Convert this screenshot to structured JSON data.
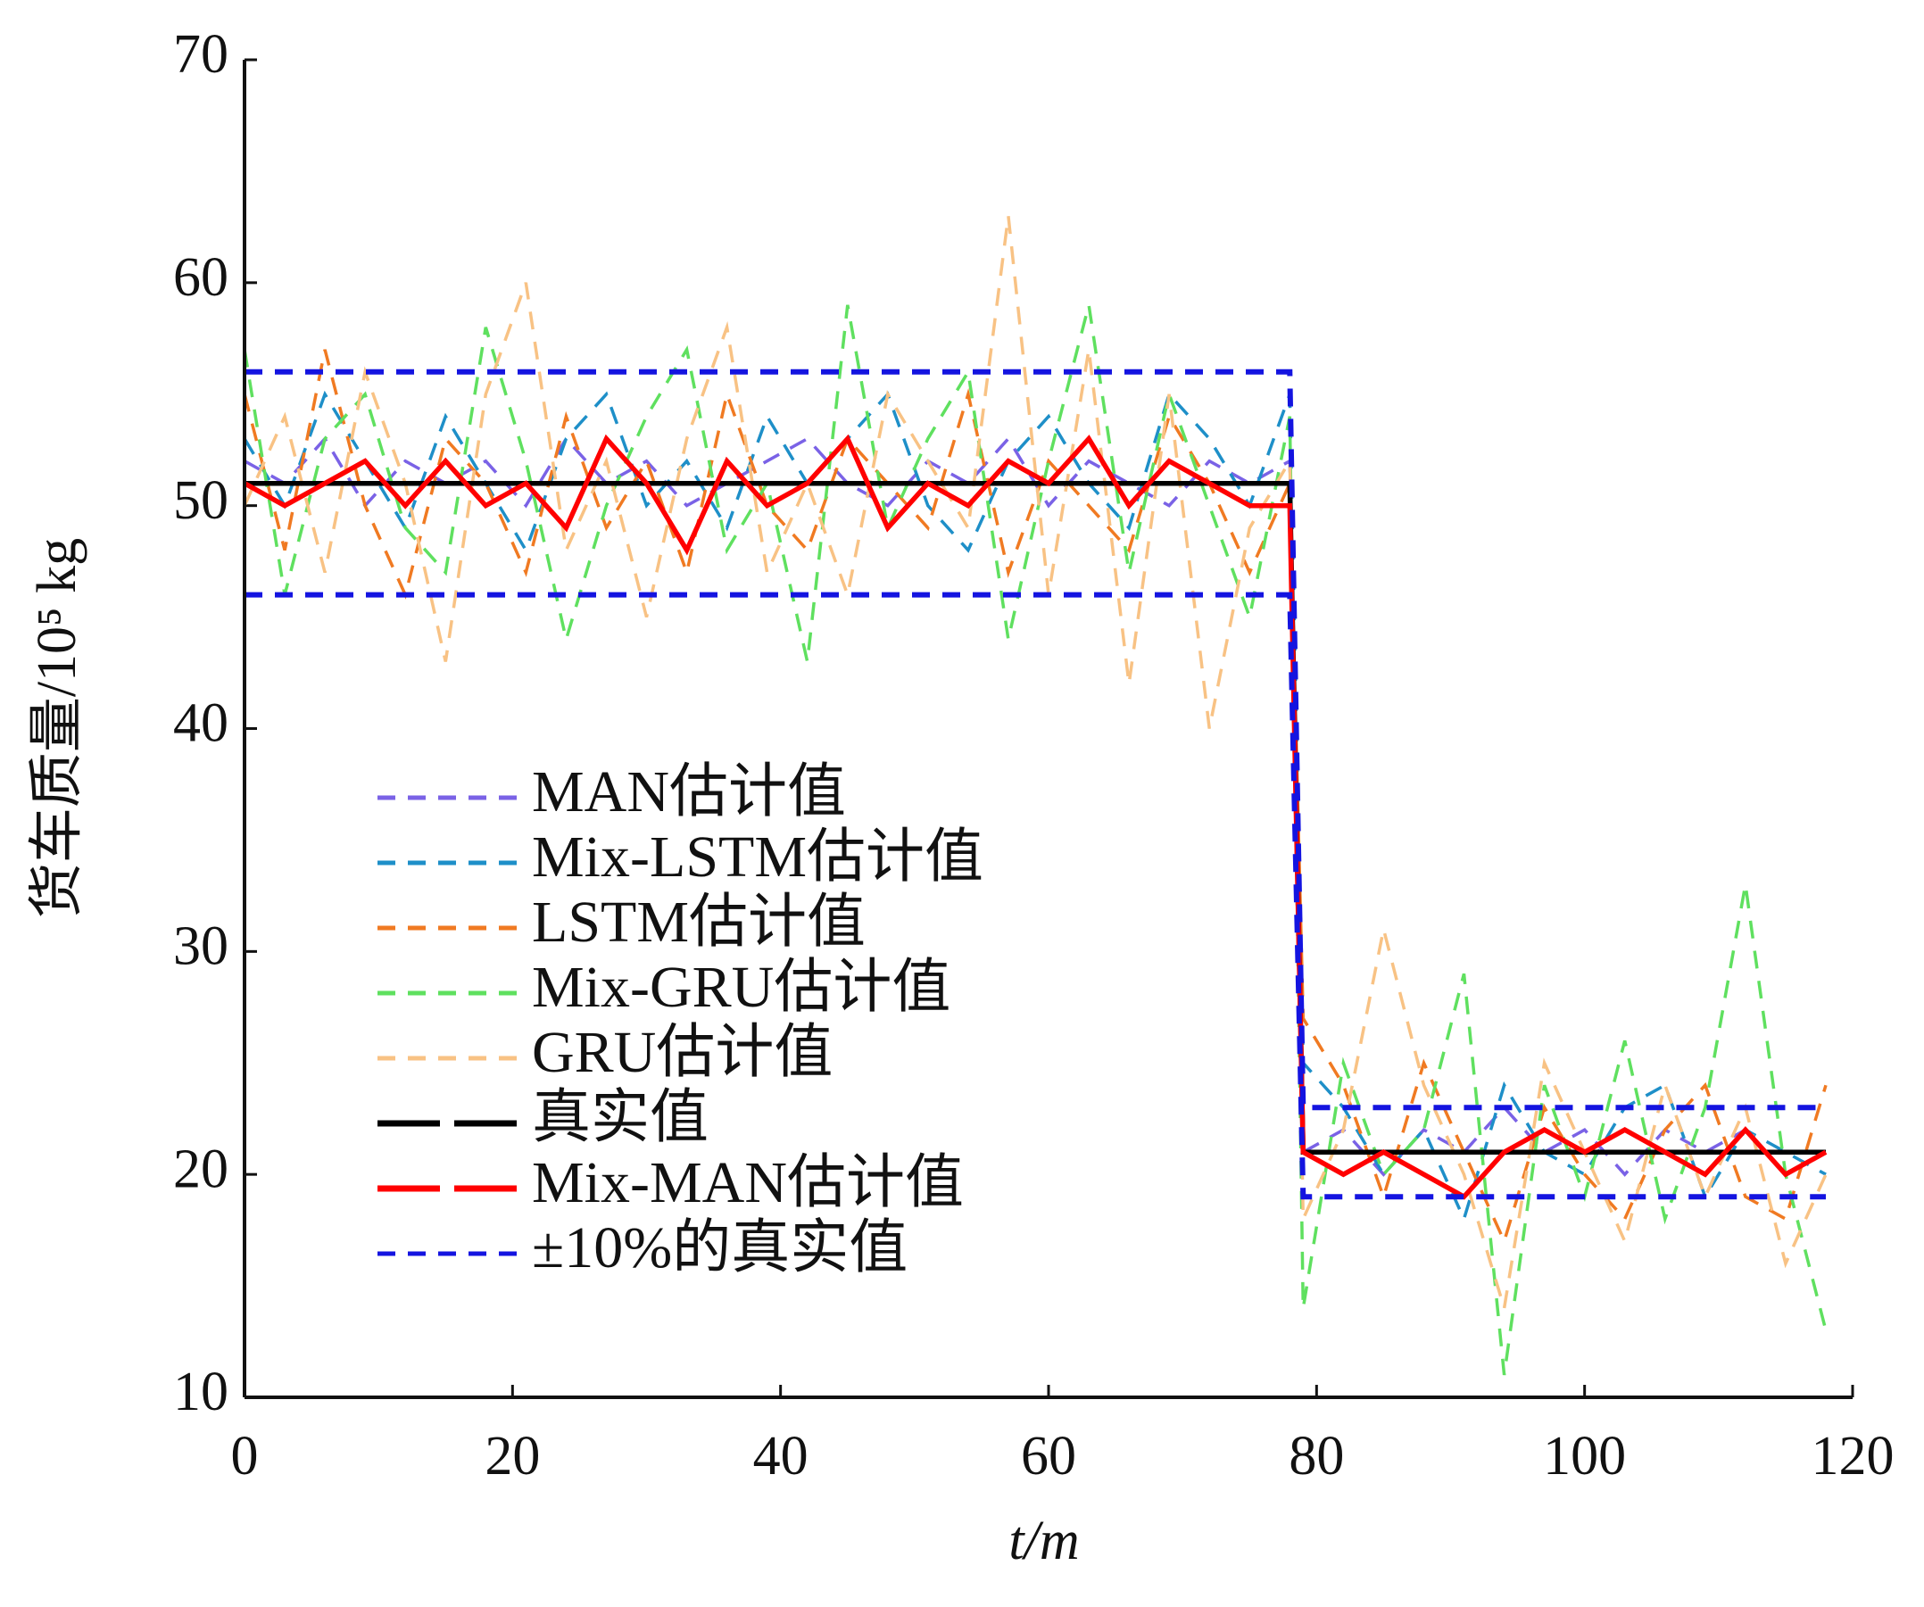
{
  "chart_data": {
    "type": "line",
    "xlabel": "t/m",
    "ylabel": "货车质量/10⁵ kg",
    "xlim": [
      0,
      120
    ],
    "xticks": [
      0,
      20,
      40,
      60,
      80,
      100,
      120
    ],
    "ylim": [
      10,
      70
    ],
    "yticks": [
      10,
      20,
      30,
      40,
      50,
      60,
      70
    ],
    "x": [
      0,
      3,
      6,
      9,
      12,
      15,
      18,
      21,
      24,
      27,
      30,
      33,
      36,
      39,
      42,
      45,
      48,
      51,
      54,
      57,
      60,
      63,
      66,
      69,
      72,
      75,
      78,
      79,
      82,
      85,
      88,
      91,
      94,
      97,
      100,
      103,
      106,
      109,
      112,
      115,
      118
    ],
    "series": [
      {
        "name": "MAN估计值",
        "color": "#7a62e6",
        "dash": true,
        "values": [
          52,
          51,
          53,
          50,
          52,
          51,
          52,
          50,
          53,
          51,
          52,
          50,
          51,
          52,
          53,
          51,
          50,
          52,
          51,
          53,
          50,
          52,
          51,
          50,
          52,
          51,
          52,
          21,
          22,
          20,
          22,
          21,
          23,
          21,
          22,
          20,
          22,
          21,
          22,
          20,
          21
        ]
      },
      {
        "name": "Mix-LSTM估计值",
        "color": "#1e8fc8",
        "dash": true,
        "values": [
          53,
          50,
          55,
          52,
          49,
          54,
          51,
          48,
          53,
          55,
          50,
          52,
          49,
          54,
          51,
          53,
          55,
          50,
          48,
          52,
          54,
          51,
          49,
          55,
          53,
          50,
          55,
          25,
          23,
          20,
          22,
          18,
          24,
          21,
          20,
          23,
          24,
          19,
          22,
          21,
          20
        ]
      },
      {
        "name": "LSTM估计值",
        "color": "#f07a22",
        "dash": true,
        "values": [
          55,
          48,
          57,
          50,
          46,
          53,
          51,
          47,
          54,
          49,
          52,
          47,
          55,
          50,
          48,
          53,
          51,
          49,
          55,
          47,
          52,
          50,
          48,
          54,
          51,
          47,
          51,
          27,
          24,
          19,
          25,
          21,
          17,
          23,
          20,
          18,
          22,
          24,
          19,
          18,
          24
        ]
      },
      {
        "name": "Mix-GRU估计值",
        "color": "#5fe05f",
        "dash": true,
        "values": [
          57,
          46,
          53,
          55,
          49,
          47,
          58,
          52,
          44,
          50,
          54,
          57,
          48,
          51,
          43,
          59,
          49,
          53,
          56,
          44,
          52,
          59,
          47,
          55,
          50,
          45,
          54,
          14,
          25,
          20,
          22,
          29,
          11,
          24,
          19,
          26,
          18,
          23,
          33,
          20,
          13
        ]
      },
      {
        "name": "GRU估计值",
        "color": "#f8c284",
        "dash": true,
        "values": [
          50,
          54,
          47,
          56,
          51,
          43,
          55,
          60,
          48,
          52,
          45,
          53,
          58,
          47,
          51,
          46,
          55,
          52,
          49,
          63,
          46,
          57,
          42,
          55,
          40,
          49,
          52,
          18,
          22,
          31,
          24,
          20,
          14,
          25,
          21,
          17,
          24,
          19,
          23,
          16,
          20
        ]
      },
      {
        "name": "真实值",
        "color": "#000000",
        "dash": false,
        "values": [
          51,
          51,
          51,
          51,
          51,
          51,
          51,
          51,
          51,
          51,
          51,
          51,
          51,
          51,
          51,
          51,
          51,
          51,
          51,
          51,
          51,
          51,
          51,
          51,
          51,
          51,
          51,
          21,
          21,
          21,
          21,
          21,
          21,
          21,
          21,
          21,
          21,
          21,
          21,
          21,
          21
        ]
      },
      {
        "name": "Mix-MAN估计值",
        "color": "#ff0000",
        "dash": false,
        "values": [
          51,
          50,
          51,
          52,
          50,
          52,
          50,
          51,
          49,
          53,
          51,
          48,
          52,
          50,
          51,
          53,
          49,
          51,
          50,
          52,
          51,
          53,
          50,
          52,
          51,
          50,
          50,
          21,
          20,
          21,
          20,
          19,
          21,
          22,
          21,
          22,
          21,
          20,
          22,
          20,
          21
        ]
      },
      {
        "name": "±10%的真实值",
        "color": "#1414e0",
        "dash": true,
        "values": [
          56,
          56,
          56,
          56,
          56,
          56,
          56,
          56,
          56,
          56,
          56,
          56,
          56,
          56,
          56,
          56,
          56,
          56,
          56,
          56,
          56,
          56,
          56,
          56,
          56,
          56,
          56,
          23,
          23,
          23,
          23,
          23,
          23,
          23,
          23,
          23,
          23,
          23,
          23,
          23,
          23
        ],
        "lower": [
          46,
          46,
          46,
          46,
          46,
          46,
          46,
          46,
          46,
          46,
          46,
          46,
          46,
          46,
          46,
          46,
          46,
          46,
          46,
          46,
          46,
          46,
          46,
          46,
          46,
          46,
          46,
          19,
          19,
          19,
          19,
          19,
          19,
          19,
          19,
          19,
          19,
          19,
          19,
          19,
          19
        ]
      }
    ]
  }
}
